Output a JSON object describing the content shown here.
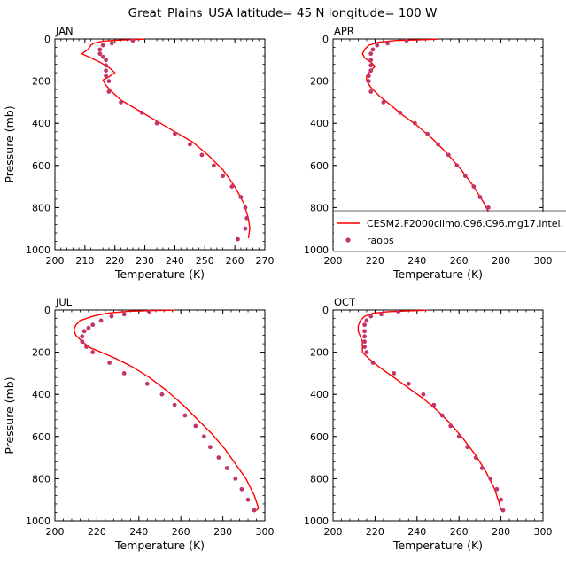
{
  "figure": {
    "title": "Great_Plains_USA  latitude= 45 N longitude= 100 W"
  },
  "colors": {
    "model_line": "#ff0000",
    "obs_marker": "#c2356b",
    "axis": "#000000"
  },
  "legend": {
    "model_label": "CESM2.F2000climo.C96.C96.mg17.intel.",
    "obs_label": "raobs"
  },
  "chart_data": [
    {
      "type": "line",
      "panel": "JAN",
      "title": "JAN",
      "xlabel": "Temperature (K)",
      "ylabel": "Pressure (mb)",
      "xlim": [
        200,
        270
      ],
      "ylim": [
        0,
        1000
      ],
      "y_inverted": true,
      "xticks": [
        200,
        210,
        220,
        230,
        240,
        250,
        260,
        270
      ],
      "yticks": [
        0,
        200,
        400,
        600,
        800,
        1000
      ],
      "series": [
        {
          "name": "CESM2.F2000climo.C96.C96.mg17.intel.",
          "kind": "line",
          "points": [
            [
              230,
              1
            ],
            [
              222,
              5
            ],
            [
              216,
              10
            ],
            [
              213,
              20
            ],
            [
              212,
              30
            ],
            [
              211,
              50
            ],
            [
              209,
              70
            ],
            [
              212,
              90
            ],
            [
              215,
              110
            ],
            [
              218,
              135
            ],
            [
              220,
              160
            ],
            [
              218,
              180
            ],
            [
              216,
              195
            ],
            [
              217,
              220
            ],
            [
              219,
              250
            ],
            [
              222,
              290
            ],
            [
              228,
              340
            ],
            [
              234,
              390
            ],
            [
              240,
              440
            ],
            [
              246,
              490
            ],
            [
              251,
              550
            ],
            [
              256,
              620
            ],
            [
              260,
              700
            ],
            [
              263,
              780
            ],
            [
              264.5,
              850
            ],
            [
              265,
              900
            ],
            [
              264.5,
              945
            ]
          ]
        },
        {
          "name": "raobs",
          "kind": "scatter",
          "points": [
            [
              226,
              7
            ],
            [
              219,
              20
            ],
            [
              216,
              30
            ],
            [
              215,
              50
            ],
            [
              215,
              70
            ],
            [
              216,
              85
            ],
            [
              217,
              100
            ],
            [
              217,
              125
            ],
            [
              217,
              150
            ],
            [
              217,
              175
            ],
            [
              218,
              200
            ],
            [
              218,
              250
            ],
            [
              222,
              300
            ],
            [
              229,
              350
            ],
            [
              234,
              400
            ],
            [
              240,
              450
            ],
            [
              245,
              500
            ],
            [
              249,
              550
            ],
            [
              253,
              600
            ],
            [
              256,
              650
            ],
            [
              259,
              700
            ],
            [
              262,
              750
            ],
            [
              263.5,
              800
            ],
            [
              264,
              850
            ],
            [
              263.5,
              900
            ],
            [
              261,
              950
            ]
          ]
        }
      ]
    },
    {
      "type": "line",
      "panel": "APR",
      "title": "APR",
      "xlabel": "Temperature (K)",
      "ylabel": "",
      "xlim": [
        200,
        300
      ],
      "ylim": [
        0,
        1000
      ],
      "y_inverted": true,
      "xticks": [
        200,
        220,
        240,
        260,
        280,
        300
      ],
      "yticks": [
        0,
        200,
        400,
        600,
        800,
        1000
      ],
      "series": [
        {
          "name": "CESM2.F2000climo.C96.C96.mg17.intel.",
          "kind": "line",
          "points": [
            [
              250,
              1
            ],
            [
              240,
              4
            ],
            [
              230,
              7
            ],
            [
              222,
              15
            ],
            [
              217,
              30
            ],
            [
              215,
              50
            ],
            [
              214,
              70
            ],
            [
              215,
              90
            ],
            [
              218,
              110
            ],
            [
              220,
              130
            ],
            [
              218,
              150
            ],
            [
              216,
              175
            ],
            [
              216,
              200
            ],
            [
              218,
              230
            ],
            [
              222,
              270
            ],
            [
              227,
              310
            ],
            [
              233,
              360
            ],
            [
              240,
              410
            ],
            [
              247,
              470
            ],
            [
              254,
              540
            ],
            [
              261,
              620
            ],
            [
              267,
              700
            ],
            [
              272,
              780
            ],
            [
              276,
              860
            ],
            [
              278.5,
              920
            ],
            [
              279,
              950
            ]
          ]
        },
        {
          "name": "raobs",
          "kind": "scatter",
          "points": [
            [
              235,
              7
            ],
            [
              226,
              20
            ],
            [
              221,
              30
            ],
            [
              219,
              50
            ],
            [
              218,
              70
            ],
            [
              218,
              100
            ],
            [
              218,
              125
            ],
            [
              218,
              150
            ],
            [
              217,
              175
            ],
            [
              217,
              200
            ],
            [
              218,
              250
            ],
            [
              224,
              300
            ],
            [
              232,
              350
            ],
            [
              239,
              400
            ],
            [
              245,
              450
            ],
            [
              250,
              500
            ],
            [
              255,
              550
            ],
            [
              259,
              600
            ],
            [
              263,
              650
            ],
            [
              267,
              700
            ],
            [
              270,
              750
            ],
            [
              274,
              800
            ],
            [
              277,
              850
            ],
            [
              278.5,
              900
            ],
            [
              279.5,
              950
            ]
          ]
        }
      ]
    },
    {
      "type": "line",
      "panel": "JUL",
      "title": "JUL",
      "xlabel": "Temperature (K)",
      "ylabel": "Pressure (mb)",
      "xlim": [
        200,
        300
      ],
      "ylim": [
        0,
        1000
      ],
      "y_inverted": true,
      "xticks": [
        200,
        220,
        240,
        260,
        280,
        300
      ],
      "yticks": [
        0,
        200,
        400,
        600,
        800,
        1000
      ],
      "series": [
        {
          "name": "CESM2.F2000climo.C96.C96.mg17.intel.",
          "kind": "line",
          "points": [
            [
              257,
              1
            ],
            [
              245,
              3
            ],
            [
              235,
              6
            ],
            [
              225,
              15
            ],
            [
              218,
              30
            ],
            [
              212,
              50
            ],
            [
              210,
              70
            ],
            [
              209,
              95
            ],
            [
              210,
              120
            ],
            [
              213,
              150
            ],
            [
              217,
              180
            ],
            [
              222,
              200
            ],
            [
              229,
              230
            ],
            [
              237,
              270
            ],
            [
              245,
              320
            ],
            [
              253,
              380
            ],
            [
              261,
              450
            ],
            [
              268,
              520
            ],
            [
              275,
              590
            ],
            [
              281,
              660
            ],
            [
              286,
              730
            ],
            [
              291,
              800
            ],
            [
              295,
              880
            ],
            [
              297,
              940
            ],
            [
              296,
              950
            ]
          ]
        },
        {
          "name": "raobs",
          "kind": "scatter",
          "points": [
            [
              245,
              7
            ],
            [
              233,
              20
            ],
            [
              227,
              30
            ],
            [
              222,
              50
            ],
            [
              218,
              70
            ],
            [
              216,
              85
            ],
            [
              214,
              100
            ],
            [
              213,
              125
            ],
            [
              213,
              150
            ],
            [
              215,
              175
            ],
            [
              218,
              200
            ],
            [
              226,
              250
            ],
            [
              233,
              300
            ],
            [
              244,
              350
            ],
            [
              251,
              400
            ],
            [
              257,
              450
            ],
            [
              262,
              500
            ],
            [
              267,
              550
            ],
            [
              271,
              600
            ],
            [
              274,
              650
            ],
            [
              278,
              700
            ],
            [
              282,
              750
            ],
            [
              286,
              800
            ],
            [
              289,
              850
            ],
            [
              292,
              900
            ],
            [
              295,
              950
            ]
          ]
        }
      ]
    },
    {
      "type": "line",
      "panel": "OCT",
      "title": "OCT",
      "xlabel": "Temperature (K)",
      "ylabel": "",
      "xlim": [
        200,
        300
      ],
      "ylim": [
        0,
        1000
      ],
      "y_inverted": true,
      "xticks": [
        200,
        220,
        240,
        260,
        280,
        300
      ],
      "yticks": [
        0,
        200,
        400,
        600,
        800,
        1000
      ],
      "series": [
        {
          "name": "CESM2.F2000climo.C96.C96.mg17.intel.",
          "kind": "line",
          "points": [
            [
              245,
              1
            ],
            [
              235,
              4
            ],
            [
              226,
              8
            ],
            [
              219,
              15
            ],
            [
              215,
              30
            ],
            [
              213,
              50
            ],
            [
              212,
              75
            ],
            [
              212,
              100
            ],
            [
              213,
              125
            ],
            [
              214,
              150
            ],
            [
              214,
              175
            ],
            [
              214,
              200
            ],
            [
              217,
              230
            ],
            [
              222,
              270
            ],
            [
              229,
              320
            ],
            [
              236,
              370
            ],
            [
              243,
              420
            ],
            [
              250,
              480
            ],
            [
              256,
              540
            ],
            [
              262,
              610
            ],
            [
              268,
              690
            ],
            [
              273,
              770
            ],
            [
              277,
              850
            ],
            [
              279,
              910
            ],
            [
              280,
              950
            ]
          ]
        },
        {
          "name": "raobs",
          "kind": "scatter",
          "points": [
            [
              231,
              7
            ],
            [
              223,
              20
            ],
            [
              218,
              30
            ],
            [
              216,
              50
            ],
            [
              215,
              70
            ],
            [
              215,
              100
            ],
            [
              215,
              125
            ],
            [
              215,
              150
            ],
            [
              215,
              175
            ],
            [
              216,
              200
            ],
            [
              219,
              250
            ],
            [
              229,
              300
            ],
            [
              236,
              350
            ],
            [
              243,
              400
            ],
            [
              248,
              450
            ],
            [
              252,
              500
            ],
            [
              256,
              550
            ],
            [
              260,
              600
            ],
            [
              264,
              650
            ],
            [
              268,
              700
            ],
            [
              271,
              750
            ],
            [
              275,
              800
            ],
            [
              278,
              850
            ],
            [
              280,
              900
            ],
            [
              281,
              950
            ]
          ]
        }
      ]
    }
  ]
}
